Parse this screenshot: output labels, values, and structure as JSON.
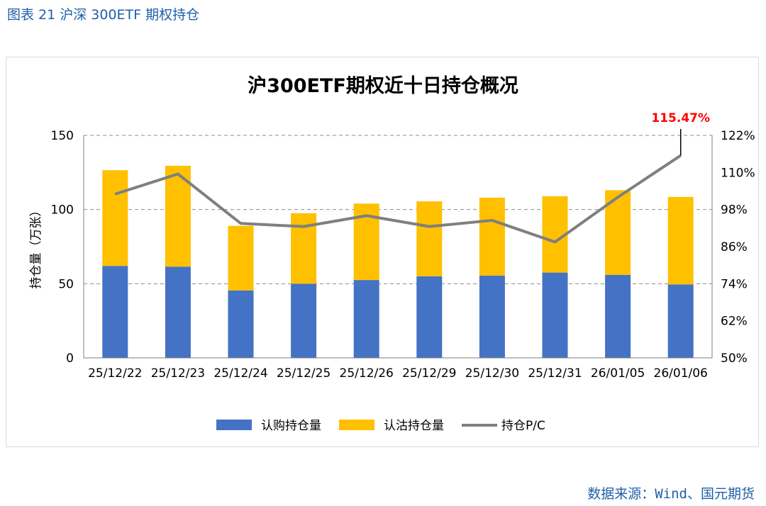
{
  "figure_caption": "图表 21  沪深 300ETF 期权持仓",
  "source_note": "数据来源：Wind、国元期货",
  "colors": {
    "call": "#4472c4",
    "put": "#ffc000",
    "pc_line": "#7f7f7f",
    "annotation": "#ff0000",
    "caption": "#1f5fa8"
  },
  "chart_data": {
    "type": "bar",
    "title": "沪300ETF期权近十日持仓概况",
    "xlabel": "",
    "ylabel": "持仓量（万张）",
    "y2label": "",
    "categories": [
      "25/12/22",
      "25/12/23",
      "25/12/24",
      "25/12/25",
      "25/12/26",
      "25/12/29",
      "25/12/30",
      "25/12/31",
      "26/01/05",
      "26/01/06"
    ],
    "ylim": [
      0,
      150
    ],
    "yticks": [
      0,
      50,
      100,
      150
    ],
    "y2lim": [
      50,
      122
    ],
    "y2ticks": [
      "50%",
      "62%",
      "74%",
      "86%",
      "98%",
      "110%",
      "122%"
    ],
    "grid": "dashed horizontal",
    "legend_position": "bottom",
    "series": [
      {
        "name": "认购持仓量",
        "kind": "stacked-bar",
        "axis": "left",
        "values": [
          62,
          61.5,
          45.5,
          50,
          52.5,
          55,
          55.5,
          57.5,
          56,
          49.5
        ]
      },
      {
        "name": "认沽持仓量",
        "kind": "stacked-bar",
        "axis": "left",
        "values": [
          64.5,
          68,
          43.5,
          47.5,
          51.5,
          50.5,
          52.5,
          51.5,
          57,
          59
        ]
      },
      {
        "name": "持仓P/C",
        "kind": "line",
        "axis": "right",
        "values": [
          103,
          109.5,
          93.5,
          92.5,
          96,
          92.5,
          94.5,
          87.5,
          102,
          115.47
        ]
      }
    ],
    "annotation": {
      "text": "115.47%",
      "category": "26/01/06"
    }
  }
}
